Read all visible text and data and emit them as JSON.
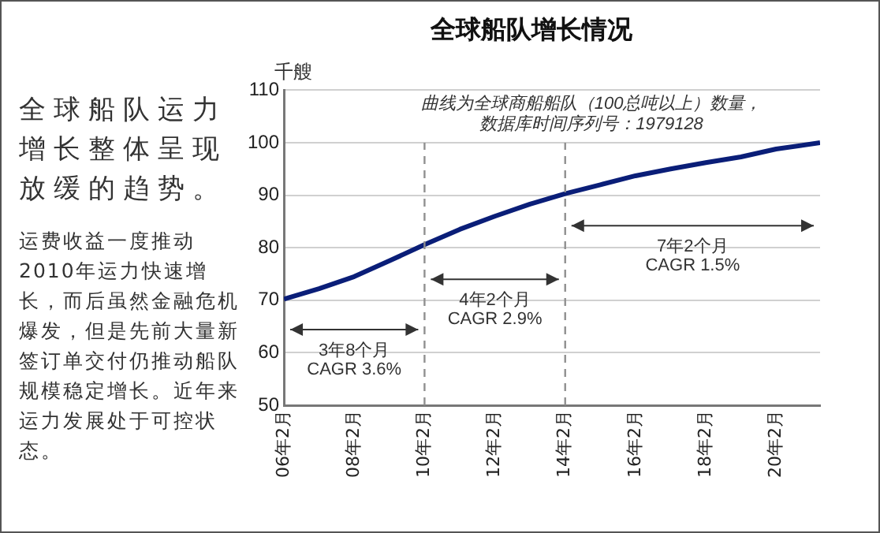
{
  "chart_data": {
    "type": "line",
    "title": "全球船队增长情况",
    "subtitle": "全球船队运力增长整体呈现放缓的趋势。",
    "ylabel": "千艘",
    "x": [
      "2006-02",
      "2007-02",
      "2008-02",
      "2009-02",
      "2010-02",
      "2011-02",
      "2012-02",
      "2013-02",
      "2014-02",
      "2015-02",
      "2016-02",
      "2017-02",
      "2018-02",
      "2019-02",
      "2020-02",
      "2021-05"
    ],
    "series": [
      {
        "color": "#0a1e78",
        "values": [
          70.2,
          72.2,
          74.5,
          77.5,
          80.6,
          83.5,
          86.0,
          88.3,
          90.3,
          92.0,
          93.7,
          95.0,
          96.2,
          97.3,
          98.8,
          100
        ]
      }
    ],
    "xlim": [
      "2006-02",
      "2021-05"
    ],
    "xticks": [
      {
        "value": "2006-02",
        "label": "06年2月"
      },
      {
        "value": "2008-02",
        "label": "08年2月"
      },
      {
        "value": "2010-02",
        "label": "10年2月"
      },
      {
        "value": "2012-02",
        "label": "12年2月"
      },
      {
        "value": "2014-02",
        "label": "14年2月"
      },
      {
        "value": "2016-02",
        "label": "16年2月"
      },
      {
        "value": "2018-02",
        "label": "18年2月"
      },
      {
        "value": "2020-02",
        "label": "20年2月"
      }
    ],
    "ylim": [
      50,
      110
    ],
    "yticks": [
      50,
      60,
      70,
      80,
      90,
      100,
      110
    ],
    "grid": "y",
    "marker": "none",
    "line_style": "solid",
    "legend": false,
    "ref_lines": [
      {
        "axis": "x",
        "value": "2010-02",
        "color": "#909090",
        "line_style": "dashed"
      },
      {
        "axis": "x",
        "value": "2014-02",
        "color": "#909090",
        "line_style": "dashed"
      }
    ],
    "annotations": [
      "3年8个月 CAGR 3.6%",
      "4年2个月 CAGR 2.9%",
      "7年2个月 CAGR 1.5%",
      "曲线为全球商船船队（100总吨以上）数量，数据库时间序列号：1979128",
      "运费收益一度推动2010年运力快速增长，而后虽然金融危机爆发，但是先前大量新签订单交付仍推动船队规模稳定增长。近年来运力发展处于可控状态。"
    ]
  }
}
